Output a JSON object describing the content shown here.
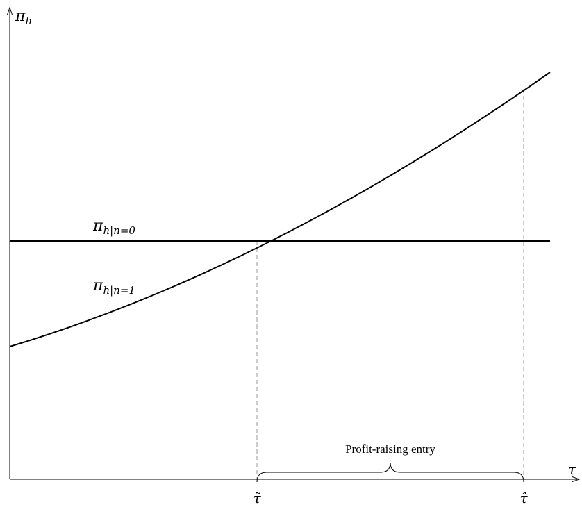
{
  "axes": {
    "y_label_base": "π",
    "y_label_sub": "h",
    "x_label": "τ"
  },
  "curves": {
    "no_entry": {
      "base": "π",
      "sub": "h|n=0"
    },
    "entry": {
      "base": "π",
      "sub": "h|n=1"
    }
  },
  "ticks": {
    "tau_tilde": "τ̃",
    "tau_hat": "τ̂"
  },
  "region": {
    "label": "Profit-raising entry"
  }
}
